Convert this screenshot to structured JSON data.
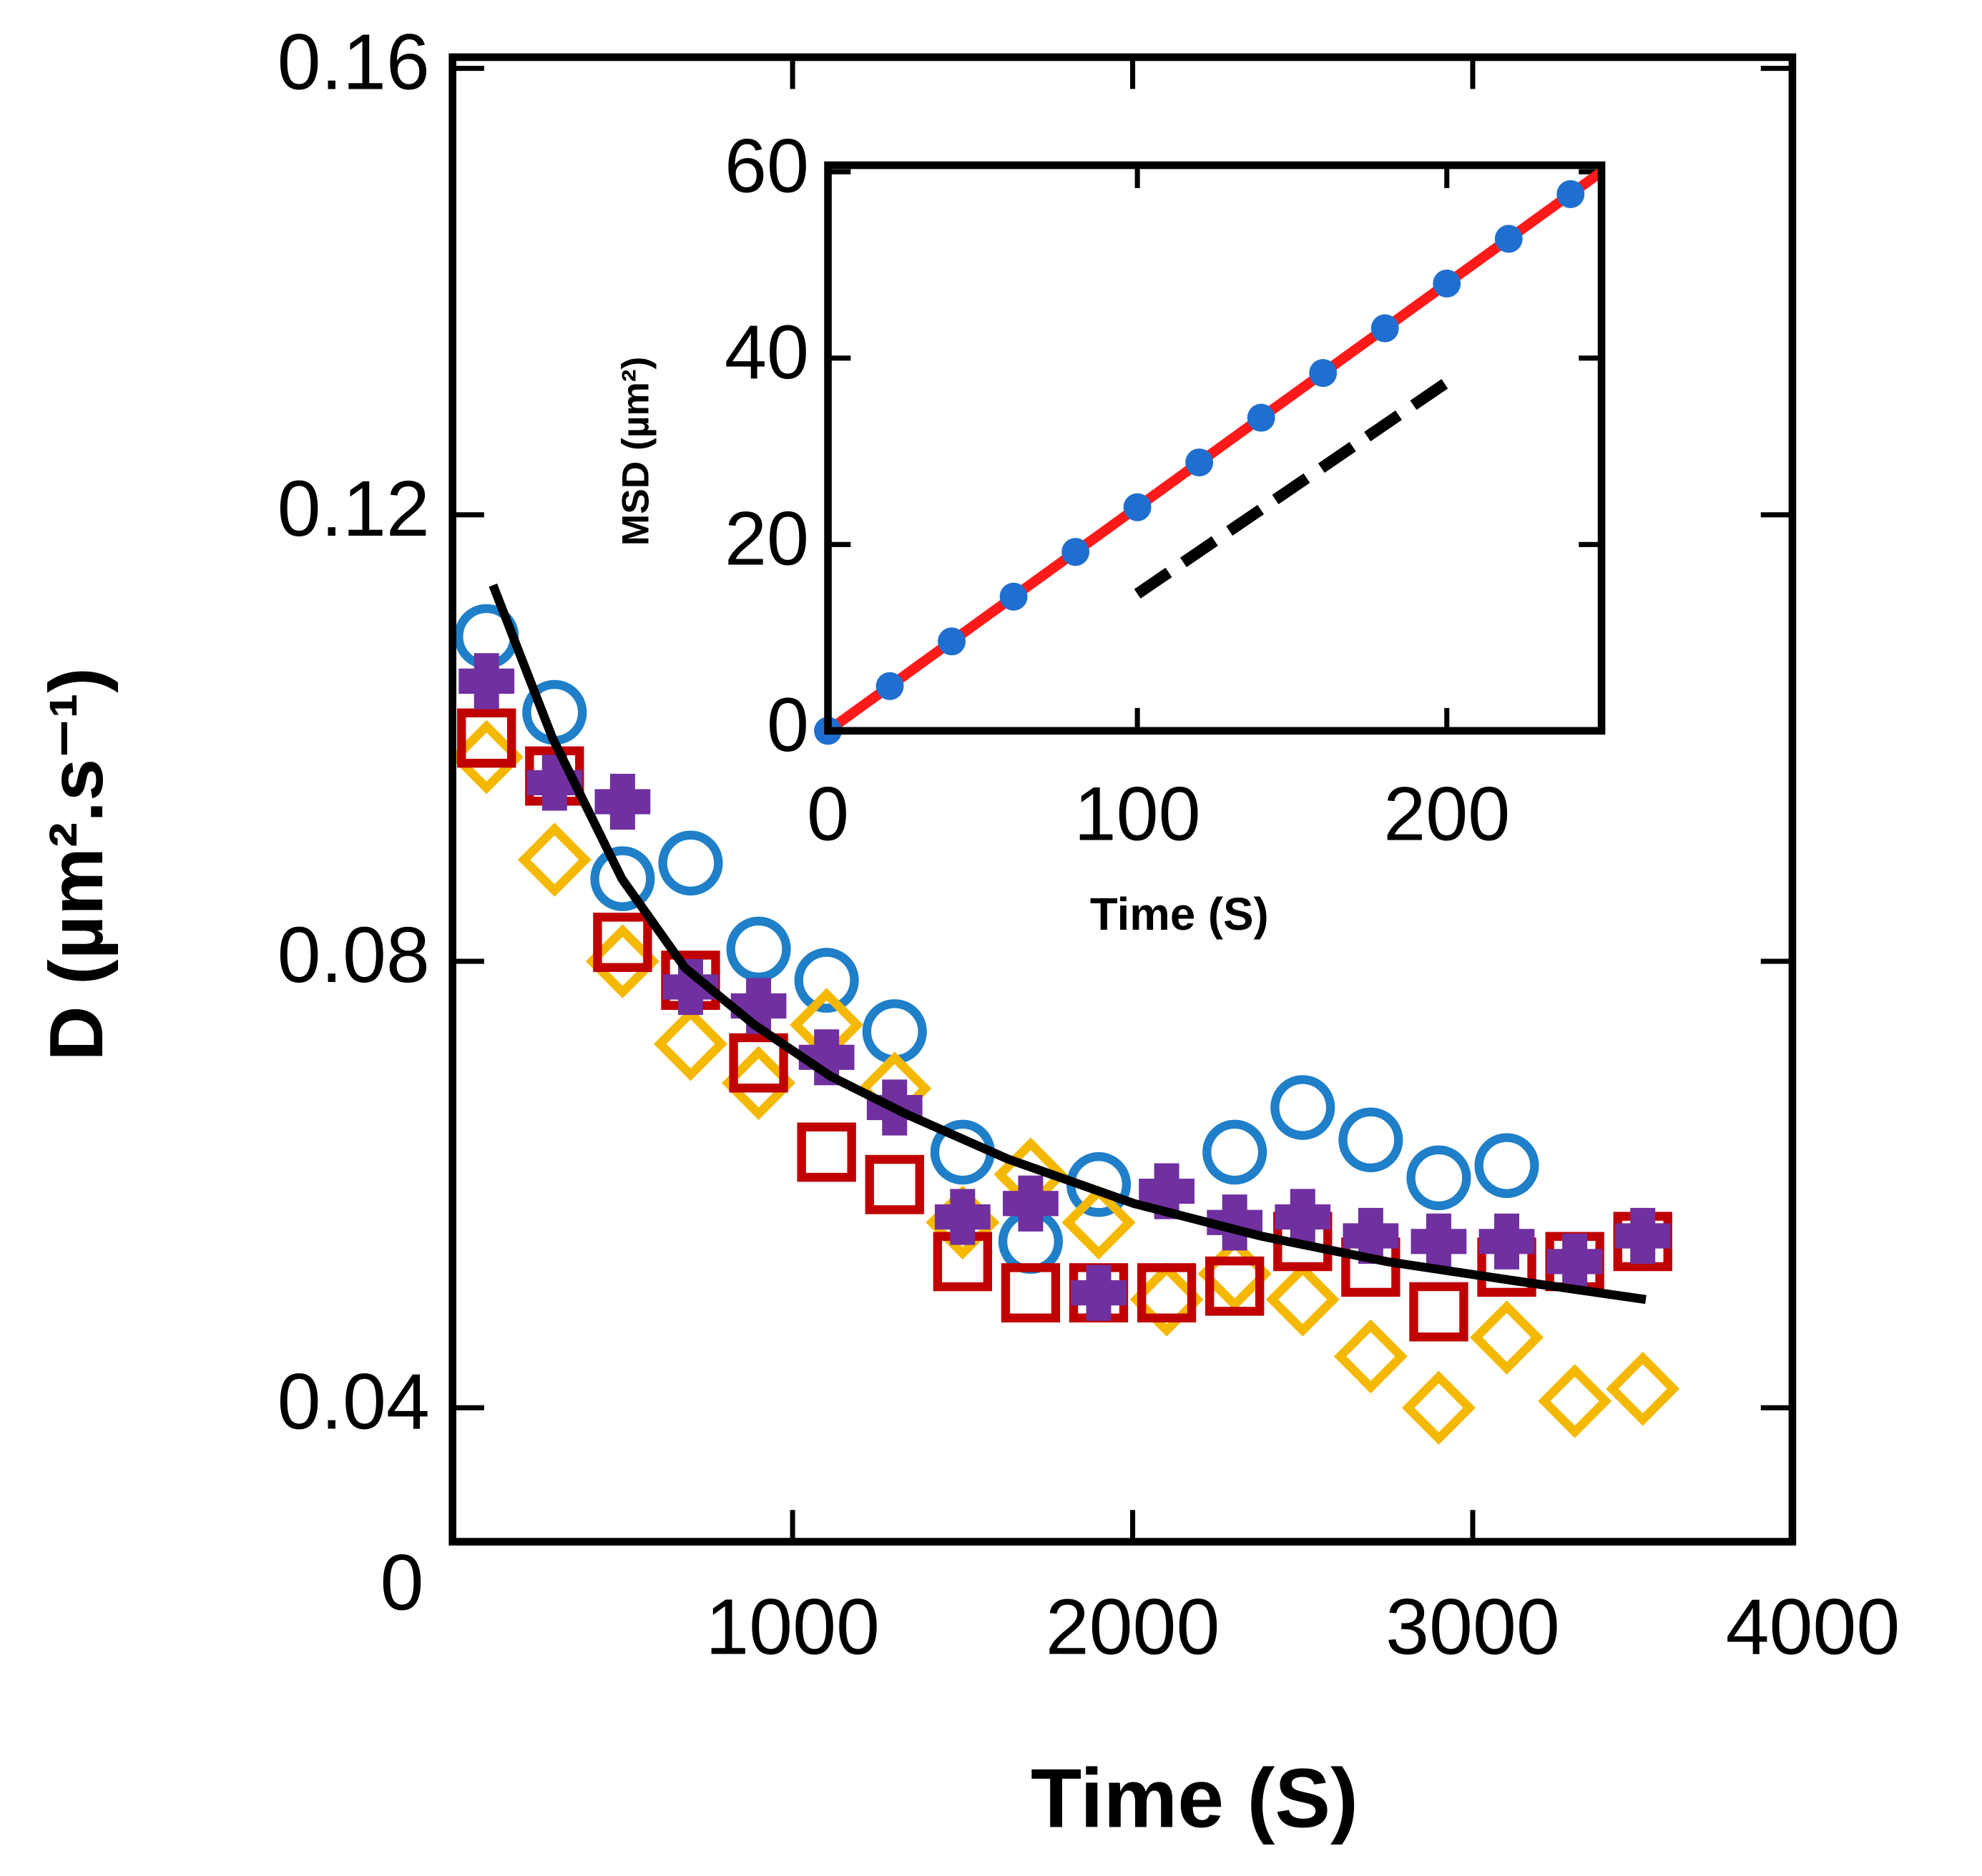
{
  "chart_data": [
    {
      "type": "scatter",
      "xlabel": "Time (S)",
      "ylabel": "D (µm².s⁻¹)",
      "xlim": [
        0,
        3940
      ],
      "ylim": [
        0.028,
        0.161
      ],
      "xticks": [
        0,
        1000,
        2000,
        3000,
        4000
      ],
      "yticks": [
        0.04,
        {
          "value": 0.08,
          "label": "0.08"
        },
        {
          "value": 0.12,
          "label": "0.12"
        },
        0.16
      ],
      "series": [
        {
          "color": "#1f7fc8",
          "marker": "circle",
          "x": [
            100,
            300,
            500,
            700,
            900,
            1100,
            1300,
            1500,
            1700,
            1900,
            2300,
            2500,
            2700,
            2900,
            3100
          ],
          "values": [
            0.1091,
            0.1023,
            0.0874,
            0.0888,
            0.0811,
            0.0783,
            0.0737,
            0.0629,
            0.0549,
            0.06,
            0.0629,
            0.0669,
            0.064,
            0.0606,
            0.0617
          ]
        },
        {
          "color": "#f5b800",
          "marker": "diamond",
          "x": [
            100,
            300,
            500,
            700,
            900,
            1100,
            1300,
            1500,
            1700,
            1900,
            2100,
            2300,
            2500,
            2700,
            2900,
            3100,
            3300,
            3500
          ],
          "values": [
            0.0983,
            0.0891,
            0.08,
            0.0726,
            0.0691,
            0.0743,
            0.0686,
            0.0566,
            0.0609,
            0.0566,
            0.0497,
            0.052,
            0.0497,
            0.0446,
            0.04,
            0.0463,
            0.0406,
            0.0417
          ]
        },
        {
          "color": "#c00000",
          "marker": "square",
          "x": [
            100,
            300,
            500,
            700,
            900,
            1100,
            1300,
            1500,
            1700,
            1900,
            2100,
            2300,
            2500,
            2700,
            2900,
            3100,
            3300,
            3500
          ],
          "values": [
            0.1,
            0.0966,
            0.0817,
            0.0783,
            0.0709,
            0.0629,
            0.06,
            0.0531,
            0.0503,
            0.0503,
            0.0503,
            0.0509,
            0.0549,
            0.0526,
            0.0486,
            0.0526,
            0.0531,
            0.0549
          ]
        },
        {
          "color": "#7030a0",
          "marker": "cross",
          "x": [
            100,
            300,
            500,
            700,
            900,
            1100,
            1300,
            1500,
            1700,
            1900,
            2100,
            2300,
            2500,
            2700,
            2900,
            3100,
            3300,
            3500
          ],
          "values": [
            0.1051,
            0.096,
            0.0943,
            0.0777,
            0.076,
            0.0714,
            0.0669,
            0.0571,
            0.0583,
            0.0503,
            0.0594,
            0.0566,
            0.0571,
            0.0554,
            0.0549,
            0.0549,
            0.0531,
            0.0554
          ]
        },
        {
          "color": "#000000",
          "marker": "none",
          "line": "solid",
          "x": [
            119,
            294,
            498,
            684,
            888,
            1112,
            1335,
            1632,
            2004,
            2375,
            2747,
            3119,
            3509
          ],
          "values": [
            0.1137,
            0.1,
            0.0874,
            0.0794,
            0.0743,
            0.0697,
            0.0663,
            0.0623,
            0.0583,
            0.0554,
            0.0531,
            0.0514,
            0.0497
          ]
        }
      ]
    },
    {
      "type": "scatter",
      "xlabel": "Time (S)",
      "ylabel": "MSD (µm²)",
      "xlim": [
        0,
        250
      ],
      "ylim": [
        0,
        60.7
      ],
      "xticks": [
        0,
        100,
        200
      ],
      "yticks": [
        0,
        20,
        40,
        60
      ],
      "series": [
        {
          "color": "#ff1a1a",
          "marker": "none",
          "line": "solid",
          "x": [
            0,
            250
          ],
          "values": [
            0,
            60
          ]
        },
        {
          "color": "#1f6fd0",
          "marker": "dot",
          "x": [
            0,
            20,
            40,
            60,
            80,
            100,
            120,
            140,
            160,
            180,
            200,
            220,
            240
          ],
          "values": [
            0,
            4.8,
            9.6,
            14.4,
            19.2,
            24,
            28.8,
            33.6,
            38.4,
            43.2,
            48,
            52.8,
            57.6
          ]
        },
        {
          "color": "#000000",
          "marker": "none",
          "line": "dashed",
          "x": [
            100,
            200
          ],
          "values": [
            14.7,
            37.4
          ]
        }
      ]
    }
  ]
}
